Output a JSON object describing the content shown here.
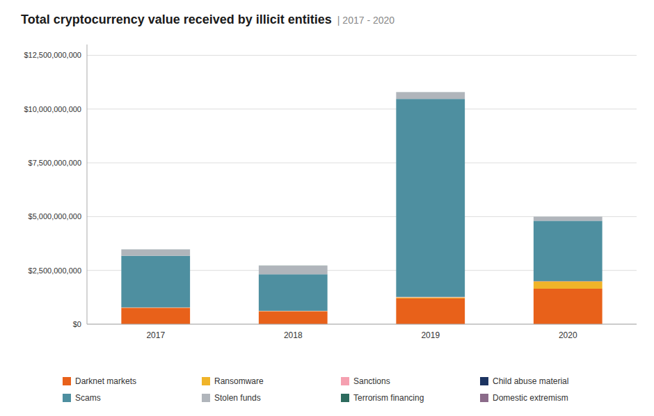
{
  "chart_data": {
    "type": "bar",
    "stacked": true,
    "title": "Total cryptocurrency value received by illicit entities",
    "subtitle": "| 2017 - 2020",
    "categories": [
      "2017",
      "2018",
      "2019",
      "2020"
    ],
    "series": [
      {
        "name": "Darknet markets",
        "color": "#e8611a",
        "values": [
          760000000,
          600000000,
          1200000000,
          1650000000
        ]
      },
      {
        "name": "Ransomware",
        "color": "#f0b429",
        "values": [
          8000000,
          8000000,
          45000000,
          340000000
        ]
      },
      {
        "name": "Sanctions",
        "color": "#f5a0b0",
        "values": [
          8000000,
          8000000,
          18000000,
          8000000
        ]
      },
      {
        "name": "Child abuse material",
        "color": "#1c3461",
        "values": [
          4000000,
          4000000,
          8000000,
          8000000
        ]
      },
      {
        "name": "Scams",
        "color": "#4e8fa0",
        "values": [
          2400000000,
          1700000000,
          9200000000,
          2800000000
        ]
      },
      {
        "name": "Stolen funds",
        "color": "#b0b5bb",
        "values": [
          290000000,
          400000000,
          310000000,
          180000000
        ]
      },
      {
        "name": "Terrorism financing",
        "color": "#2d6b5e",
        "values": [
          4000000,
          4000000,
          4000000,
          4000000
        ]
      },
      {
        "name": "Domestic extremism",
        "color": "#8b6b8a",
        "values": [
          1000000,
          1000000,
          1000000,
          1000000
        ]
      }
    ],
    "ylim": [
      0,
      13000000000
    ],
    "yticks": [
      {
        "value": 0,
        "label": "$0"
      },
      {
        "value": 2500000000,
        "label": "$2,500,000,000"
      },
      {
        "value": 5000000000,
        "label": "$5,000,000,000"
      },
      {
        "value": 7500000000,
        "label": "$7,500,000,000"
      },
      {
        "value": 10000000000,
        "label": "$10,000,000,000"
      },
      {
        "value": 12500000000,
        "label": "$12,500,000,000"
      }
    ],
    "grid": true,
    "legend": "bottom"
  }
}
